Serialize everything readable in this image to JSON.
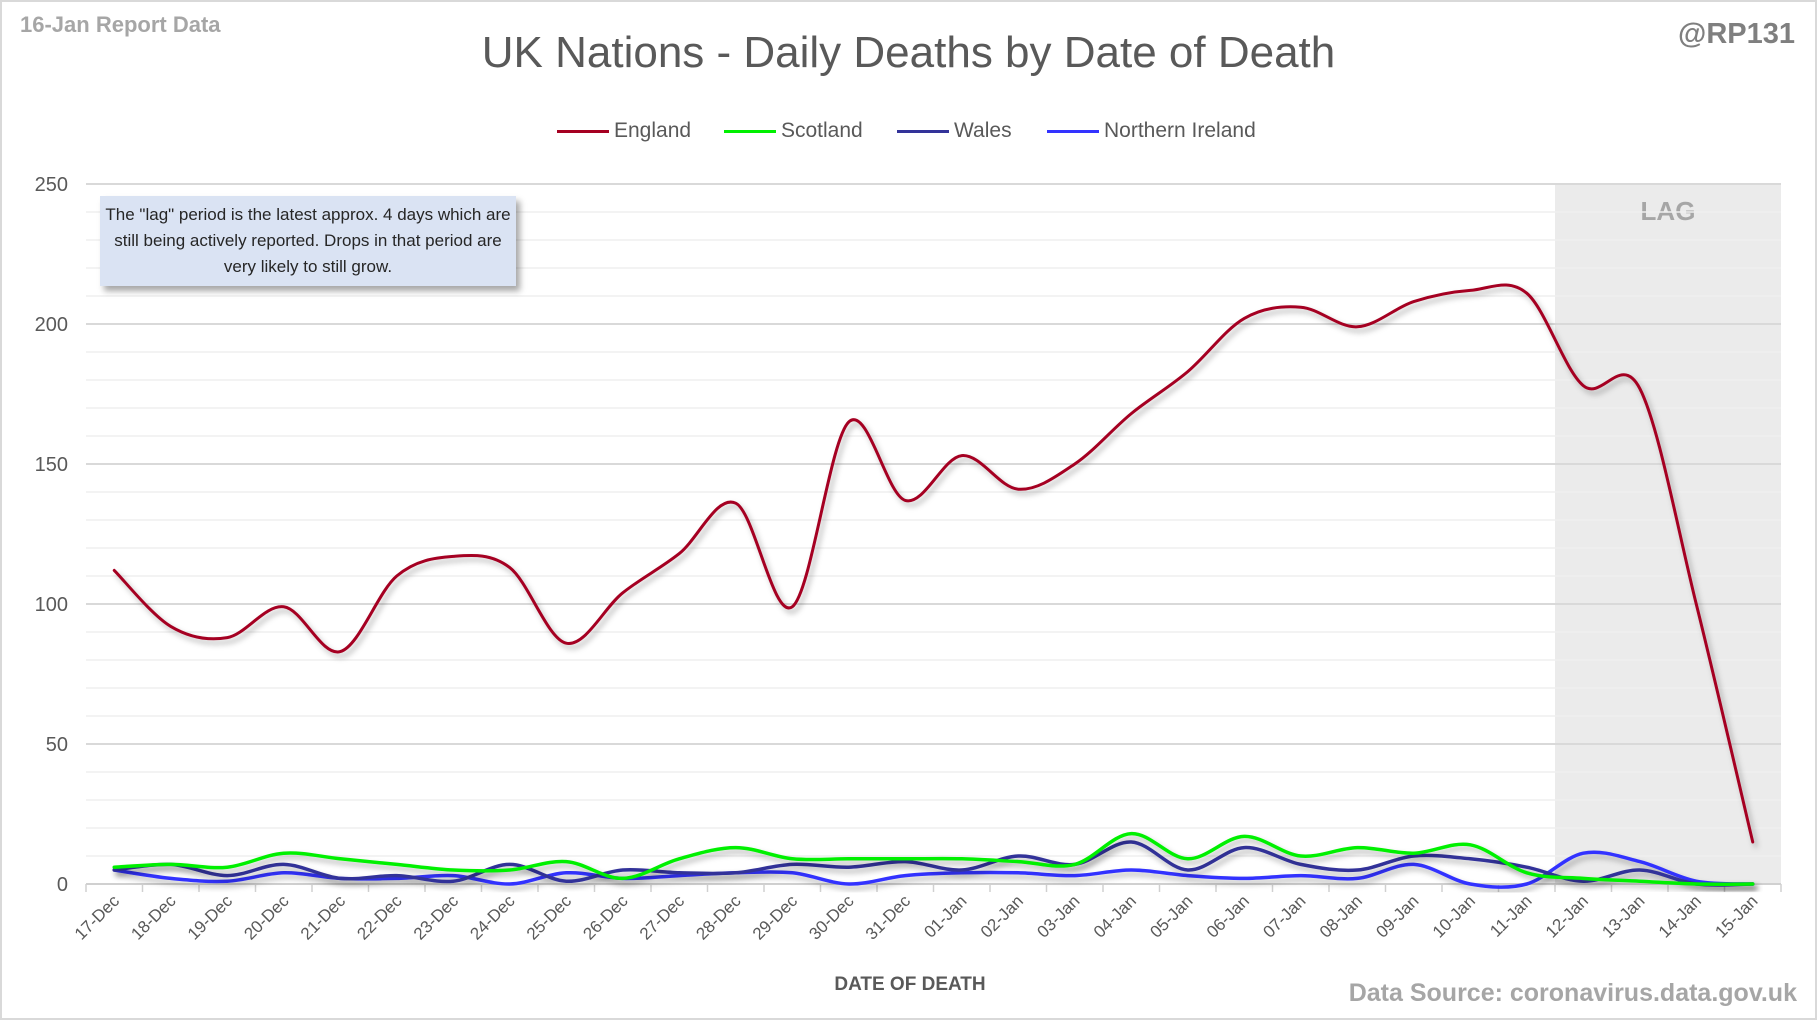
{
  "header": {
    "report_date": "16-Jan Report Data",
    "handle": "@RP131",
    "title": "UK Nations - Daily Deaths by Date of Death"
  },
  "note": "The \"lag\" period is the latest approx. 4 days which are still being actively reported.  Drops in that period are very likely to still grow.",
  "lag_label": "LAG",
  "source": "Data Source: coronavirus.data.gov.uk",
  "chart_data": {
    "type": "line",
    "title": "UK Nations - Daily Deaths by Date of Death",
    "xlabel": "DATE OF DEATH",
    "ylabel": "",
    "ylim": [
      0,
      250
    ],
    "yticks": [
      0,
      50,
      100,
      150,
      200,
      250
    ],
    "minor_gridline_step": 10,
    "grid": true,
    "legend_position": "top-center",
    "smoothed": true,
    "lag_period": {
      "label": "LAG",
      "start": "12-Jan",
      "end": "15-Jan",
      "shade_color": "#ebebeb"
    },
    "categories": [
      "17-Dec",
      "18-Dec",
      "19-Dec",
      "20-Dec",
      "21-Dec",
      "22-Dec",
      "23-Dec",
      "24-Dec",
      "25-Dec",
      "26-Dec",
      "27-Dec",
      "28-Dec",
      "29-Dec",
      "30-Dec",
      "31-Dec",
      "01-Jan",
      "02-Jan",
      "03-Jan",
      "04-Jan",
      "05-Jan",
      "06-Jan",
      "07-Jan",
      "08-Jan",
      "09-Jan",
      "10-Jan",
      "11-Jan",
      "12-Jan",
      "13-Jan",
      "14-Jan",
      "15-Jan"
    ],
    "series": [
      {
        "name": "England",
        "color": "#a50021",
        "values": [
          112,
          92,
          88,
          99,
          83,
          110,
          117,
          113,
          86,
          104,
          118,
          136,
          99,
          165,
          137,
          153,
          141,
          150,
          168,
          183,
          202,
          206,
          199,
          208,
          212,
          211,
          178,
          177,
          100,
          15
        ]
      },
      {
        "name": "Scotland",
        "color": "#00f000",
        "values": [
          6,
          7,
          6,
          11,
          9,
          7,
          5,
          5,
          8,
          2,
          9,
          13,
          9,
          9,
          9,
          9,
          8,
          7,
          18,
          9,
          17,
          10,
          13,
          11,
          14,
          4,
          2,
          1,
          0,
          0
        ]
      },
      {
        "name": "Wales",
        "color": "#333399",
        "values": [
          5,
          7,
          3,
          7,
          2,
          3,
          1,
          7,
          1,
          5,
          4,
          4,
          7,
          6,
          8,
          5,
          10,
          7,
          15,
          5,
          13,
          7,
          5,
          10,
          9,
          6,
          1,
          5,
          0,
          0
        ]
      },
      {
        "name": "Northern Ireland",
        "color": "#3333ff",
        "values": [
          5,
          2,
          1,
          4,
          2,
          2,
          3,
          0,
          4,
          2,
          3,
          4,
          4,
          0,
          3,
          4,
          4,
          3,
          5,
          3,
          2,
          3,
          2,
          7,
          0,
          0,
          11,
          8,
          1,
          0
        ]
      }
    ]
  }
}
